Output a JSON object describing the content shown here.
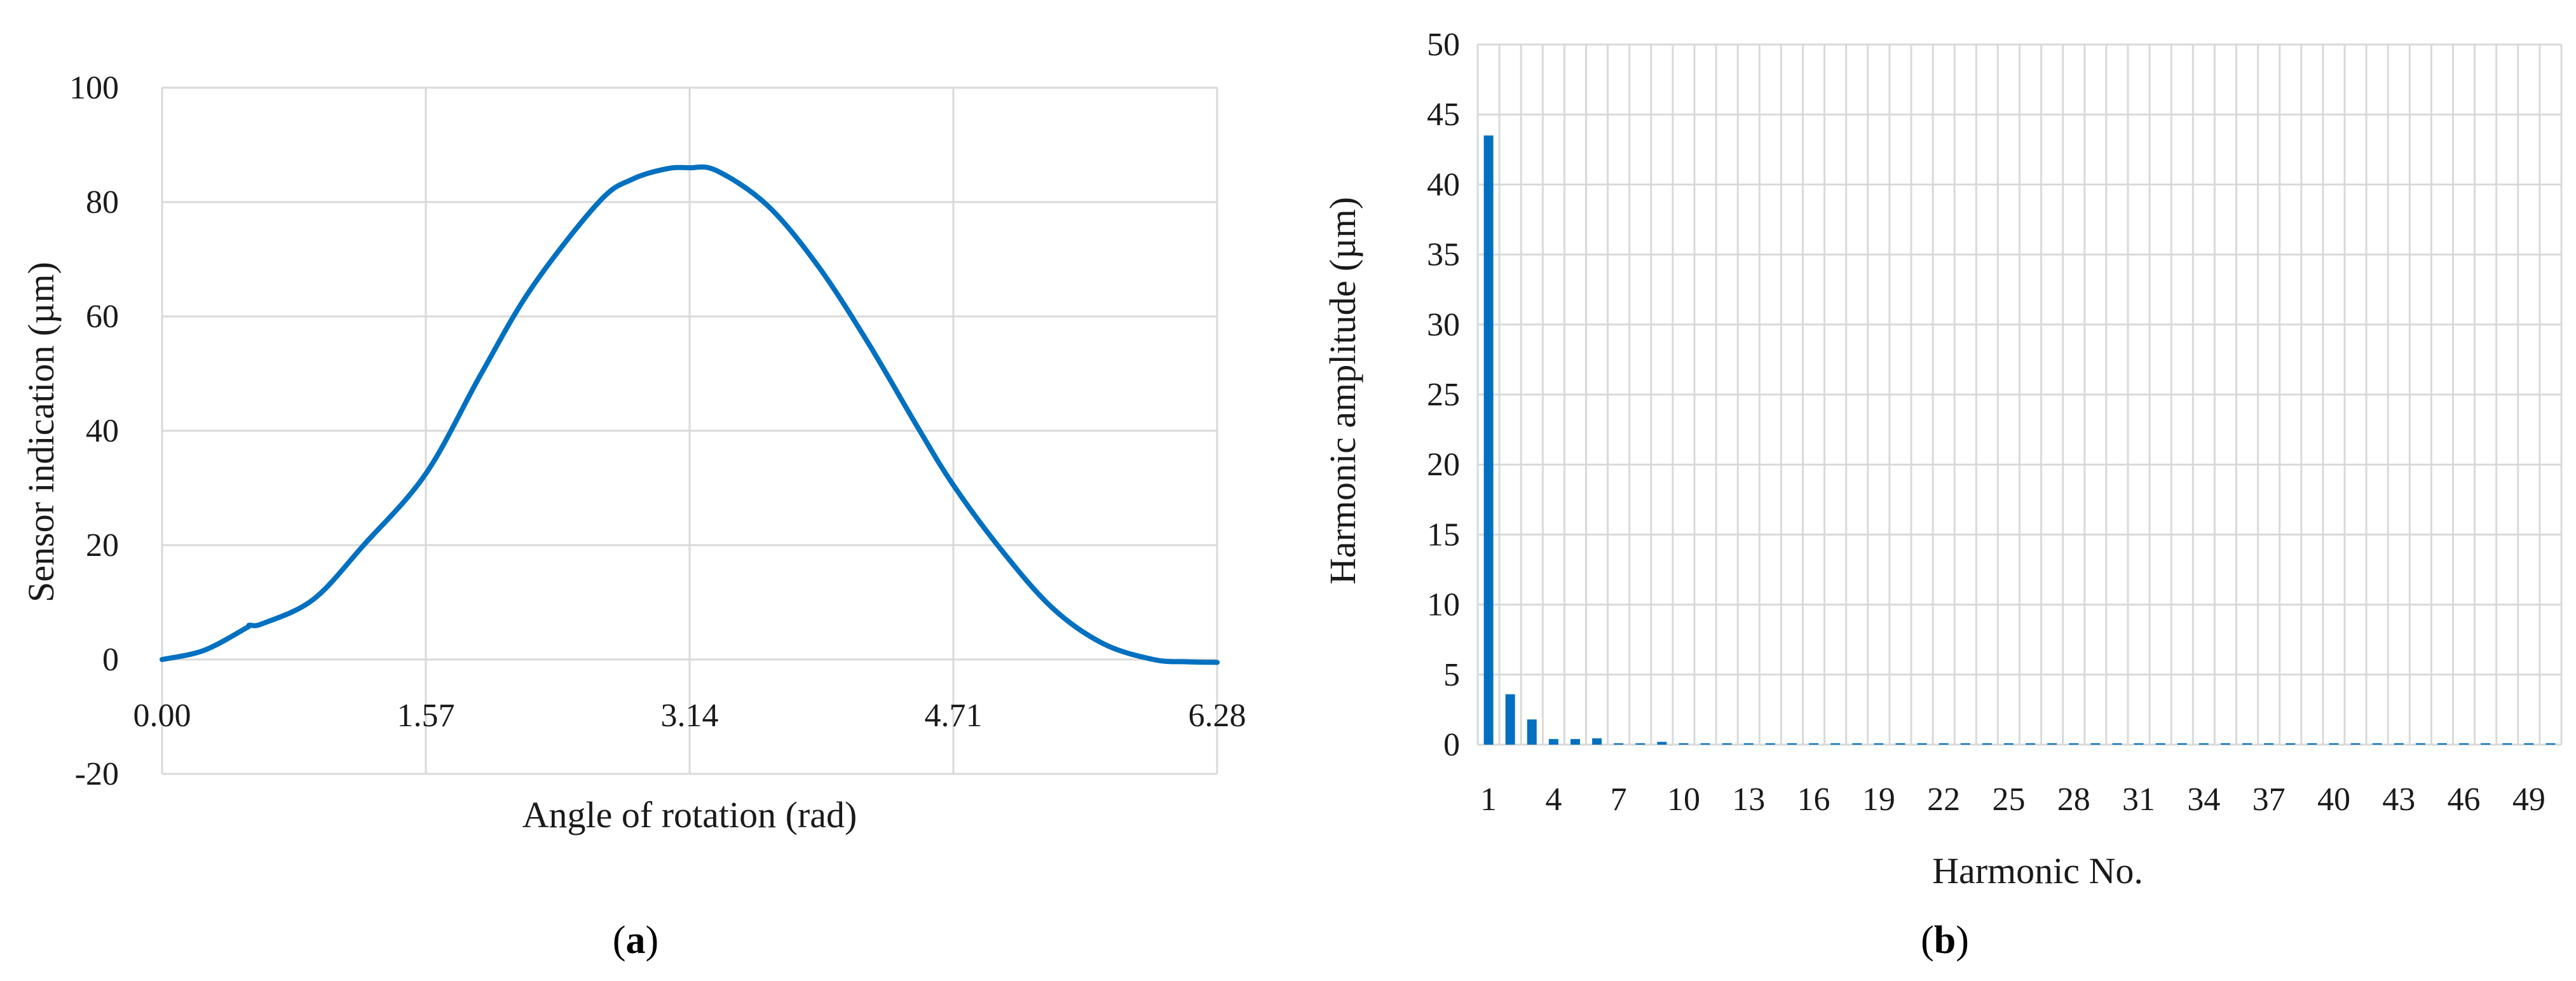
{
  "colors": {
    "series": "#0070C0",
    "grid": "#D9D9D9",
    "text": "#1a1a1a"
  },
  "chart_data": [
    {
      "type": "line",
      "title": "",
      "xlabel": "Angle of rotation (rad)",
      "ylabel": "Sensor indication (µm)",
      "xlim": [
        0,
        6.28
      ],
      "ylim": [
        -20,
        100
      ],
      "x_ticks": [
        "0.00",
        "1.57",
        "3.14",
        "4.71",
        "6.28"
      ],
      "y_ticks": [
        "-20",
        "0",
        "20",
        "40",
        "60",
        "80",
        "100"
      ],
      "grid": "vertical and horizontal",
      "legend": "none",
      "caption_letter": "a",
      "series": [
        {
          "x": [
            0.0,
            0.25,
            0.5,
            0.52,
            0.6,
            0.9,
            1.2,
            1.57,
            1.9,
            2.2,
            2.6,
            2.8,
            3.0,
            3.14,
            3.3,
            3.6,
            3.9,
            4.2,
            4.5,
            4.71,
            5.0,
            5.3,
            5.6,
            5.9,
            6.1,
            6.28
          ],
          "y": [
            0.0,
            1.6,
            5.5,
            6.0,
            6.3,
            10.5,
            20.0,
            32.5,
            50.0,
            65.0,
            80.0,
            84.0,
            85.8,
            86.0,
            85.5,
            79.5,
            69.0,
            55.5,
            40.5,
            30.5,
            19.0,
            9.0,
            2.8,
            0.0,
            -0.4,
            -0.5
          ]
        }
      ]
    },
    {
      "type": "bar",
      "title": "",
      "xlabel": "Harmonic No.",
      "ylabel": "Harmonic amplitude (µm)",
      "ylim": [
        0,
        50
      ],
      "y_ticks": [
        "0",
        "5",
        "10",
        "15",
        "20",
        "25",
        "30",
        "35",
        "40",
        "45",
        "50"
      ],
      "x_tick_labels": [
        "1",
        "4",
        "7",
        "10",
        "13",
        "16",
        "19",
        "22",
        "25",
        "28",
        "31",
        "34",
        "37",
        "40",
        "43",
        "46",
        "49"
      ],
      "grid": "vertical and horizontal",
      "legend": "none",
      "caption_letter": "b",
      "categories": [
        "1",
        "2",
        "3",
        "4",
        "5",
        "6",
        "7",
        "8",
        "9",
        "10",
        "11",
        "12",
        "13",
        "14",
        "15",
        "16",
        "17",
        "18",
        "19",
        "20",
        "21",
        "22",
        "23",
        "24",
        "25",
        "26",
        "27",
        "28",
        "29",
        "30",
        "31",
        "32",
        "33",
        "34",
        "35",
        "36",
        "37",
        "38",
        "39",
        "40",
        "41",
        "42",
        "43",
        "44",
        "45",
        "46",
        "47",
        "48",
        "49",
        "50"
      ],
      "values": [
        43.5,
        3.6,
        1.8,
        0.4,
        0.4,
        0.45,
        0.1,
        0.1,
        0.2,
        0.1,
        0.1,
        0.1,
        0.1,
        0.1,
        0.1,
        0.1,
        0.1,
        0.1,
        0.1,
        0.1,
        0.1,
        0.1,
        0.1,
        0.1,
        0.1,
        0.1,
        0.1,
        0.1,
        0.1,
        0.1,
        0.1,
        0.1,
        0.1,
        0.1,
        0.1,
        0.1,
        0.1,
        0.1,
        0.1,
        0.1,
        0.1,
        0.1,
        0.1,
        0.1,
        0.1,
        0.1,
        0.1,
        0.1,
        0.1,
        0.1
      ]
    }
  ]
}
